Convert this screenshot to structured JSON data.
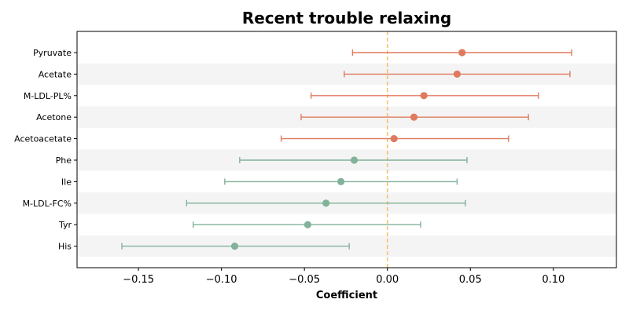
{
  "chart_data": {
    "type": "scatter",
    "subtype": "forest-plot",
    "title": "Recent trouble relaxing",
    "xlabel": "Coefficient",
    "ylabel": "",
    "xlim": [
      -0.187,
      0.138
    ],
    "xticks": [
      -0.15,
      -0.1,
      -0.05,
      0.0,
      0.05,
      0.1
    ],
    "xtick_labels": [
      "−0.15",
      "−0.10",
      "−0.05",
      "0.00",
      "0.05",
      "0.10"
    ],
    "reference_line": {
      "x": 0,
      "color": "#f5c26b",
      "style": "dashed"
    },
    "categories": [
      "Pyruvate",
      "Acetate",
      "M-LDL-PL%",
      "Acetone",
      "Acetoacetate",
      "Phe",
      "Ile",
      "M-LDL-FC%",
      "Tyr",
      "His"
    ],
    "points": [
      {
        "label": "Pyruvate",
        "estimate": 0.045,
        "ci_low": -0.021,
        "ci_high": 0.111,
        "color": "#e07a5f"
      },
      {
        "label": "Acetate",
        "estimate": 0.042,
        "ci_low": -0.026,
        "ci_high": 0.11,
        "color": "#e07a5f"
      },
      {
        "label": "M-LDL-PL%",
        "estimate": 0.022,
        "ci_low": -0.046,
        "ci_high": 0.091,
        "color": "#e07a5f"
      },
      {
        "label": "Acetone",
        "estimate": 0.016,
        "ci_low": -0.052,
        "ci_high": 0.085,
        "color": "#e07a5f"
      },
      {
        "label": "Acetoacetate",
        "estimate": 0.004,
        "ci_low": -0.064,
        "ci_high": 0.073,
        "color": "#e07a5f"
      },
      {
        "label": "Phe",
        "estimate": -0.02,
        "ci_low": -0.089,
        "ci_high": 0.048,
        "color": "#81b29a"
      },
      {
        "label": "Ile",
        "estimate": -0.028,
        "ci_low": -0.098,
        "ci_high": 0.042,
        "color": "#81b29a"
      },
      {
        "label": "M-LDL-FC%",
        "estimate": -0.037,
        "ci_low": -0.121,
        "ci_high": 0.047,
        "color": "#81b29a"
      },
      {
        "label": "Tyr",
        "estimate": -0.048,
        "ci_low": -0.117,
        "ci_high": 0.02,
        "color": "#81b29a"
      },
      {
        "label": "His",
        "estimate": -0.092,
        "ci_low": -0.16,
        "ci_high": -0.023,
        "color": "#81b29a"
      }
    ],
    "stripes": "alternating light gray rows",
    "grid": false,
    "legend": false
  }
}
